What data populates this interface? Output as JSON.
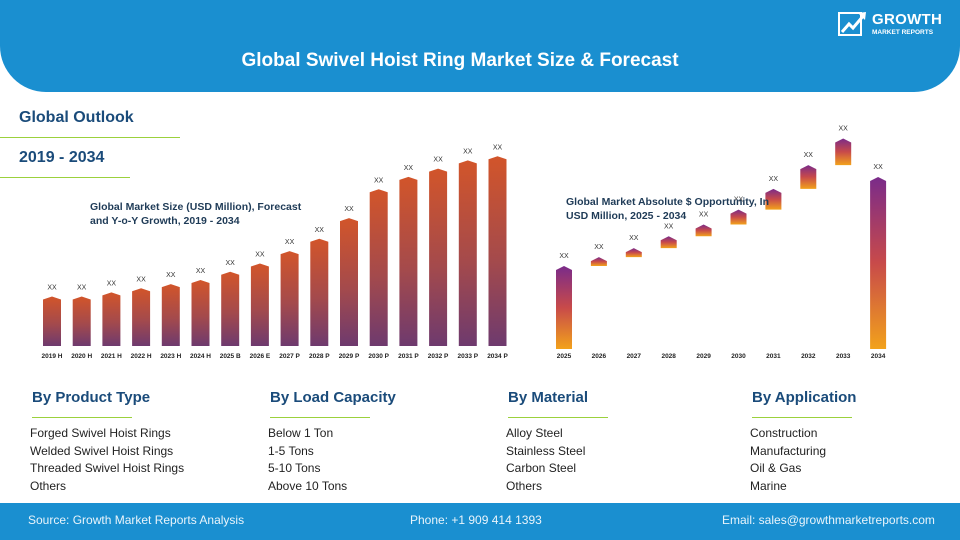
{
  "header": {
    "title": "Global Swivel Hoist Ring Market Size & Forecast",
    "logo_line1": "GROWTH",
    "logo_line2": "MARKET REPORTS"
  },
  "outlook": {
    "label": "Global Outlook",
    "years": "2019 - 2034"
  },
  "colors": {
    "header_blue": "#1a8fd0",
    "heading_navy": "#1a4b7a",
    "underline_green": "#9bd13c",
    "bar_gradient_top": "#c05a3a",
    "bar_gradient_bottom": "#6a3a6e"
  },
  "chart_data": [
    {
      "type": "bar",
      "title": "Global Market Size (USD Million), Forecast and Y-o-Y Growth, 2019 - 2034",
      "categories": [
        "2019 H",
        "2020 H",
        "2021 H",
        "2022 H",
        "2023 H",
        "2024 H",
        "2025 B",
        "2026 E",
        "2027 P",
        "2028 P",
        "2029 P",
        "2030 P",
        "2031 P",
        "2032 P",
        "2033 P",
        "2034 P"
      ],
      "values": [
        12,
        12,
        13,
        14,
        15,
        16,
        18,
        20,
        23,
        26,
        31,
        38,
        41,
        43,
        45,
        46
      ],
      "data_labels": [
        "XX",
        "XX",
        "XX",
        "XX",
        "XX",
        "XX",
        "XX",
        "XX",
        "XX",
        "XX",
        "XX",
        "XX",
        "XX",
        "XX",
        "XX",
        "XX"
      ],
      "ylim": [
        0,
        48
      ],
      "grid": false,
      "legend": "none"
    },
    {
      "type": "bar",
      "title": "Global Market Absolute $ Opportunity, In USD Million, 2025 - 2034",
      "categories": [
        "2025",
        "2026",
        "2027",
        "2028",
        "2029",
        "2030",
        "2031",
        "2032",
        "2033",
        "2034"
      ],
      "waterfall": true,
      "values": [
        28,
        3,
        3,
        4,
        4,
        5,
        7,
        8,
        9,
        58
      ],
      "data_labels": [
        "XX",
        "XX",
        "XX",
        "XX",
        "XX",
        "XX",
        "XX",
        "XX",
        "XX",
        "XX"
      ],
      "ylim": [
        0,
        58
      ],
      "grid": false,
      "legend": "none"
    }
  ],
  "segments": [
    {
      "heading": "By Product Type",
      "items": [
        "Forged Swivel Hoist Rings",
        "Welded Swivel Hoist Rings",
        "Threaded Swivel Hoist Rings",
        "Others"
      ]
    },
    {
      "heading": "By Load Capacity",
      "items": [
        "Below 1 Ton",
        "1-5 Tons",
        "5-10 Tons",
        "Above 10 Tons"
      ]
    },
    {
      "heading": "By Material",
      "items": [
        "Alloy Steel",
        "Stainless Steel",
        "Carbon Steel",
        "Others"
      ]
    },
    {
      "heading": "By Application",
      "items": [
        "Construction",
        "Manufacturing",
        "Oil & Gas",
        "Marine"
      ]
    }
  ],
  "footer": {
    "source": "Source: Growth Market Reports Analysis",
    "phone": "Phone: +1 909 414 1393",
    "email": "Email: sales@growthmarketreports.com"
  }
}
